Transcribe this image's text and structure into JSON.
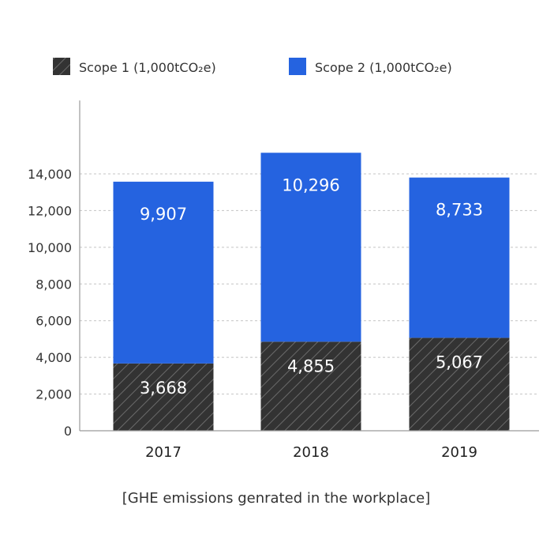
{
  "legend": {
    "scope1_label": "Scope 1 (1,000tCO₂e)",
    "scope2_label": "Scope 2 (1,000tCO₂e)"
  },
  "caption": "[GHE emissions genrated in the workplace]",
  "colors": {
    "scope1": "#333333",
    "scope1_hatch": "#6a6a6a",
    "scope2": "#2563e0",
    "axis": "#9a9a9a",
    "grid": "#c4c4c4"
  },
  "chart_data": {
    "type": "bar",
    "stacked": true,
    "categories": [
      "2017",
      "2018",
      "2019"
    ],
    "series": [
      {
        "name": "Scope 1 (1,000tCO₂e)",
        "values": [
          3668,
          4855,
          5067
        ],
        "labels": [
          "3,668",
          "4,855",
          "5,067"
        ]
      },
      {
        "name": "Scope 2 (1,000tCO₂e)",
        "values": [
          9907,
          10296,
          8733
        ],
        "labels": [
          "9,907",
          "10,296",
          "8,733"
        ]
      }
    ],
    "ylim": [
      0,
      18000
    ],
    "yticks": [
      0,
      2000,
      4000,
      6000,
      8000,
      10000,
      12000,
      14000
    ],
    "ytick_labels": [
      "0",
      "2,000",
      "4,000",
      "6,000",
      "8,000",
      "10,000",
      "12,000",
      "14,000"
    ],
    "grid": true,
    "legend_position": "top",
    "title": "",
    "xlabel": "",
    "ylabel": ""
  }
}
